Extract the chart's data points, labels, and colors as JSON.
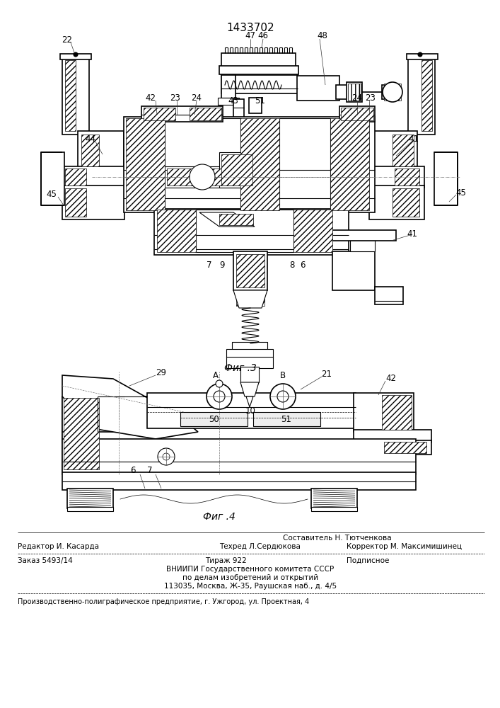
{
  "patent_number": "1433702",
  "fig3_label": "Фиг .3",
  "fig4_label": "Фиг .4",
  "bg_color": "#ffffff",
  "line_color": "#000000",
  "footer": {
    "sostavitel": "Составитель Н. Тютченкова",
    "redaktor": "Редактор И. Касарда",
    "tehred": "Техред Л.Сердюкова",
    "korrektor": "Корректор М. Максимишинец",
    "zakaz": "Заказ 5493/14",
    "tirazh": "Тираж 922",
    "podpisnoe": "Подписное",
    "vniipи": "ВНИИПИ Государственного комитета СССР",
    "po_delam": "по делам изобретений и открытий",
    "address": "113035, Москва, Ж-35, Раушская наб., д. 4/5",
    "tipografia": "Производственно-полиграфическое предприятие, г. Ужгород, ул. Проектная, 4"
  }
}
